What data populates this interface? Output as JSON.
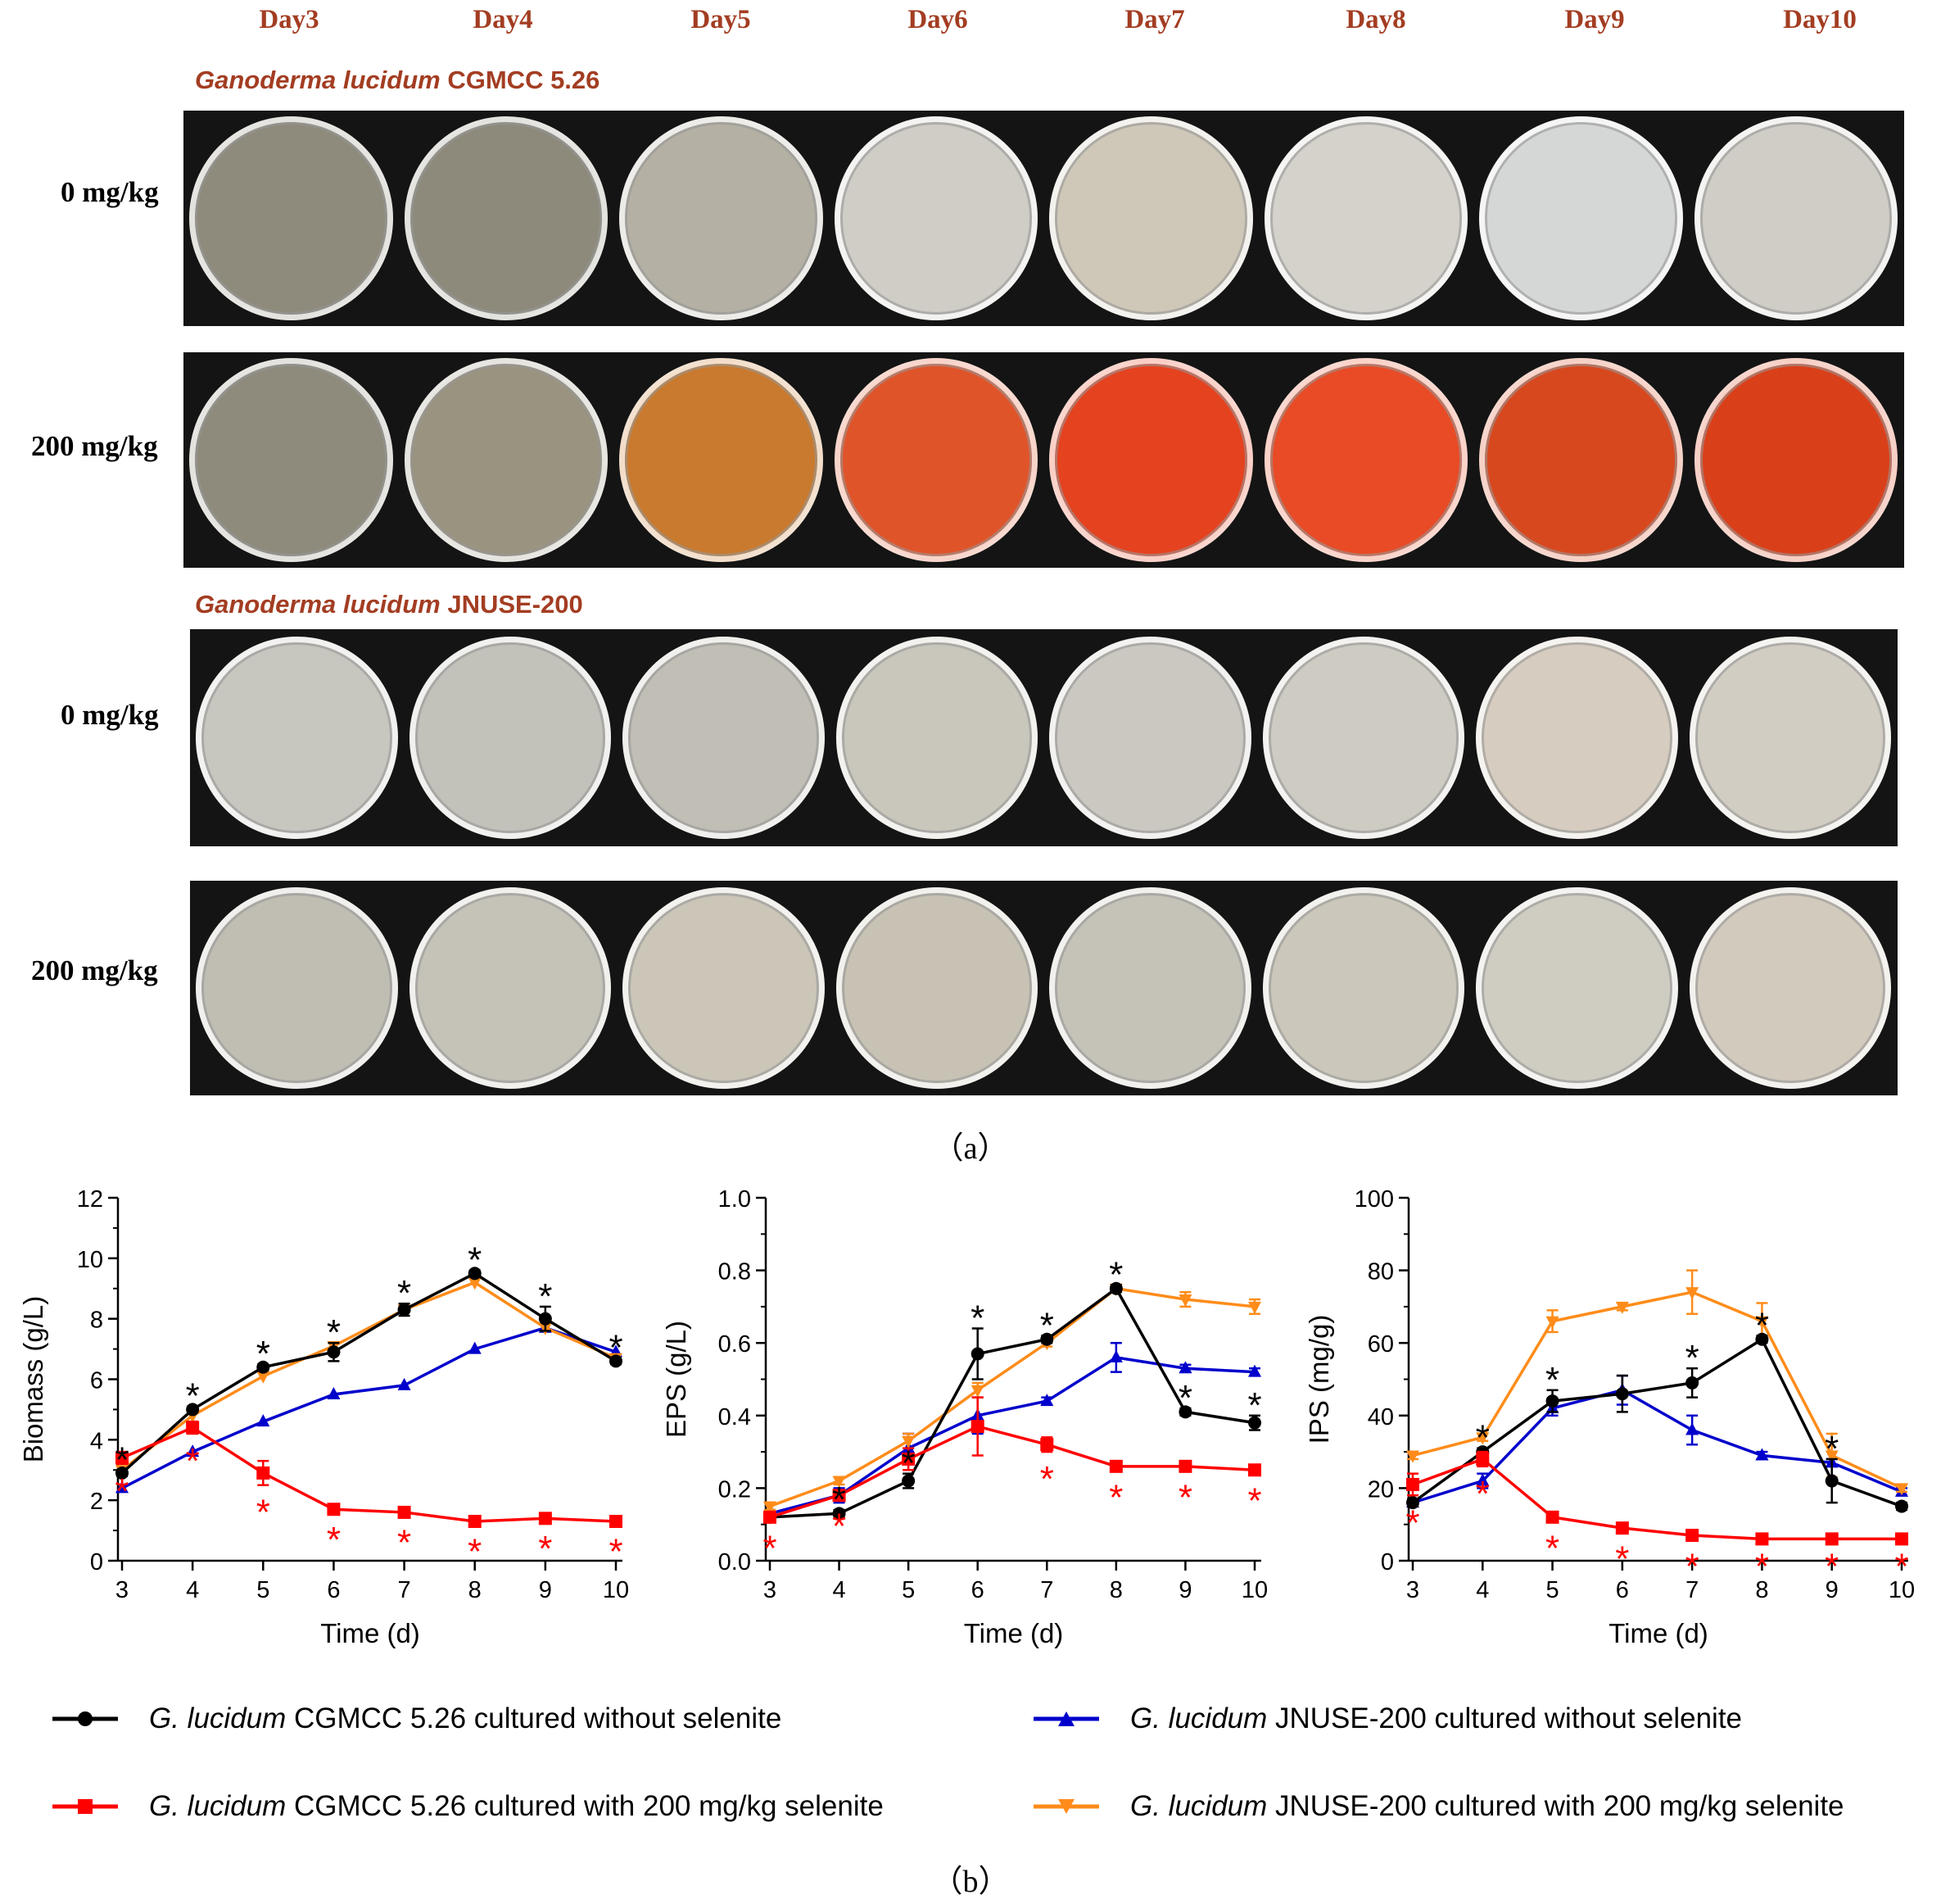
{
  "panel_a": {
    "days": [
      "Day3",
      "Day4",
      "Day5",
      "Day6",
      "Day7",
      "Day8",
      "Day9",
      "Day10"
    ],
    "strain1": {
      "species": "Ganoderma lucidum",
      "strain": "CGMCC 5.26"
    },
    "strain2": {
      "species": "Ganoderma lucidum",
      "strain": "JNUSE-200"
    },
    "conc_0": "0 mg/kg",
    "conc_200": "200 mg/kg",
    "caption": "（a）",
    "colors": {
      "cgmcc_0": [
        "#8e8a7c",
        "#8d8a7c",
        "#b4b0a4",
        "#cfcdc6",
        "#cfc8b8",
        "#d4d2cb",
        "#d5d7d6",
        "#cfcdc6"
      ],
      "cgmcc_200": [
        "#8e8a7c",
        "#9a9380",
        "#c97a2e",
        "#e0542a",
        "#e5421f",
        "#e84b25",
        "#d8481f",
        "#d9401a"
      ],
      "jnuse_0": [
        "#c7c6bf",
        "#c2c1ba",
        "#c0beb5",
        "#c9c6bb",
        "#cac8c0",
        "#cecbc2",
        "#d6ccbf",
        "#d2cdc2"
      ],
      "jnuse_200": [
        "#c0bdb3",
        "#c5c2b8",
        "#cbc6b8",
        "#c7c2b4",
        "#c5c2b8",
        "#cbc7ba",
        "#cfccc2",
        "#d2cabd"
      ]
    }
  },
  "panel_b": {
    "caption": "（b）",
    "legend": [
      {
        "species": "G. lucidum",
        "text": " CGMCC 5.26 cultured without selenite"
      },
      {
        "species": "G. lucidum",
        "text": " JNUSE-200 cultured without selenite"
      },
      {
        "species": "G. lucidum",
        "text": " CGMCC 5.26 cultured with 200 mg/kg selenite"
      },
      {
        "species": "G. lucidum",
        "text": " JNUSE-200 cultured with 200 mg/kg selenite"
      }
    ],
    "series_colors": {
      "cgmcc_0": "#000000",
      "cgmcc_200": "#ff0000",
      "jnuse_0": "#0000cc",
      "jnuse_200": "#ff8c1a"
    },
    "markers": {
      "cgmcc_0": "circle",
      "cgmcc_200": "square",
      "jnuse_0": "triangle-up",
      "jnuse_200": "triangle-down"
    }
  },
  "chart_data": [
    {
      "type": "line",
      "xlabel": "Time (d)",
      "ylabel": "Biomass (g/L)",
      "ylim": [
        0,
        12
      ],
      "yticks": [
        "0",
        "2",
        "4",
        "6",
        "8",
        "10",
        "12"
      ],
      "x": [
        3,
        4,
        5,
        6,
        7,
        8,
        9,
        10
      ],
      "xticks": [
        "3",
        "4",
        "5",
        "6",
        "7",
        "8",
        "9",
        "10"
      ],
      "series": [
        {
          "key": "cgmcc_0",
          "values": [
            2.9,
            5.0,
            6.4,
            6.9,
            8.3,
            9.5,
            8.0,
            6.6
          ],
          "err": [
            0.1,
            0.1,
            0.1,
            0.3,
            0.2,
            0.1,
            0.4,
            0.1
          ]
        },
        {
          "key": "cgmcc_200",
          "values": [
            3.4,
            4.4,
            2.9,
            1.7,
            1.6,
            1.3,
            1.4,
            1.3
          ],
          "err": [
            0.2,
            0.2,
            0.4,
            0.1,
            0.1,
            0.1,
            0.1,
            0.1
          ]
        },
        {
          "key": "jnuse_0",
          "values": [
            2.4,
            3.6,
            4.6,
            5.5,
            5.8,
            7.0,
            7.7,
            6.9
          ],
          "err": [
            0,
            0,
            0,
            0,
            0,
            0,
            0,
            0
          ]
        },
        {
          "key": "jnuse_200",
          "values": [
            3.0,
            4.8,
            6.1,
            7.1,
            8.3,
            9.2,
            7.7,
            6.7
          ],
          "err": [
            0,
            0,
            0,
            0,
            0,
            0,
            0,
            0
          ]
        }
      ],
      "sig_black": [
        "*",
        "*",
        "*",
        "*",
        "*",
        "*",
        "*",
        "*"
      ],
      "sig_red": [
        "*",
        "*",
        "*",
        "*",
        "*",
        "*",
        "*",
        "*"
      ]
    },
    {
      "type": "line",
      "xlabel": "Time (d)",
      "ylabel": "EPS (g/L)",
      "ylim": [
        0,
        1.0
      ],
      "yticks": [
        "0.0",
        "0.2",
        "0.4",
        "0.6",
        "0.8",
        "1.0"
      ],
      "x": [
        3,
        4,
        5,
        6,
        7,
        8,
        9,
        10
      ],
      "xticks": [
        "3",
        "4",
        "5",
        "6",
        "7",
        "8",
        "9",
        "10"
      ],
      "series": [
        {
          "key": "cgmcc_0",
          "values": [
            0.12,
            0.13,
            0.22,
            0.57,
            0.61,
            0.75,
            0.41,
            0.38
          ],
          "err": [
            0.01,
            0.01,
            0.02,
            0.07,
            0.01,
            0.01,
            0.01,
            0.02
          ]
        },
        {
          "key": "cgmcc_200",
          "values": [
            0.12,
            0.18,
            0.28,
            0.37,
            0.32,
            0.26,
            0.26,
            0.25
          ],
          "err": [
            0.01,
            0.01,
            0.03,
            0.08,
            0.02,
            0.01,
            0.01,
            0.01
          ]
        },
        {
          "key": "jnuse_0",
          "values": [
            0.13,
            0.18,
            0.31,
            0.4,
            0.44,
            0.56,
            0.53,
            0.52
          ],
          "err": [
            0.01,
            0.02,
            0.04,
            0.05,
            0.01,
            0.04,
            0.01,
            0.01
          ]
        },
        {
          "key": "jnuse_200",
          "values": [
            0.15,
            0.22,
            0.33,
            0.47,
            0.6,
            0.75,
            0.72,
            0.7
          ],
          "err": [
            0.01,
            0.01,
            0.02,
            0.02,
            0.01,
            0.01,
            0.02,
            0.02
          ]
        }
      ],
      "sig_black": [
        "",
        "*",
        "*",
        "*",
        "*",
        "*",
        "*",
        "*"
      ],
      "sig_red": [
        "*",
        "*",
        "",
        "",
        "*",
        "*",
        "*",
        "*"
      ]
    },
    {
      "type": "line",
      "xlabel": "Time (d)",
      "ylabel": "IPS (mg/g)",
      "ylim": [
        0,
        100
      ],
      "yticks": [
        "0",
        "20",
        "40",
        "60",
        "80",
        "100"
      ],
      "x": [
        3,
        4,
        5,
        6,
        7,
        8,
        9,
        10
      ],
      "xticks": [
        "3",
        "4",
        "5",
        "6",
        "7",
        "8",
        "9",
        "10"
      ],
      "series": [
        {
          "key": "cgmcc_0",
          "values": [
            16,
            30,
            44,
            46,
            49,
            61,
            22,
            15
          ],
          "err": [
            1,
            1,
            3,
            5,
            4,
            1,
            6,
            1
          ]
        },
        {
          "key": "cgmcc_200",
          "values": [
            21,
            28,
            12,
            9,
            7,
            6,
            6,
            6
          ],
          "err": [
            3,
            2,
            1,
            1,
            1,
            0,
            0,
            0
          ]
        },
        {
          "key": "jnuse_0",
          "values": [
            16,
            22,
            42,
            47,
            36,
            29,
            27,
            19
          ],
          "err": [
            1,
            2,
            2,
            4,
            4,
            1,
            1,
            1
          ]
        },
        {
          "key": "jnuse_200",
          "values": [
            29,
            34,
            66,
            70,
            74,
            66,
            29,
            20
          ],
          "err": [
            1,
            1,
            3,
            1,
            6,
            5,
            6,
            1
          ]
        }
      ],
      "sig_black": [
        "",
        "*",
        "*",
        "",
        "*",
        "*",
        "*",
        ""
      ],
      "sig_red": [
        "*",
        "*",
        "*",
        "*",
        "*",
        "*",
        "*",
        "*"
      ]
    }
  ]
}
